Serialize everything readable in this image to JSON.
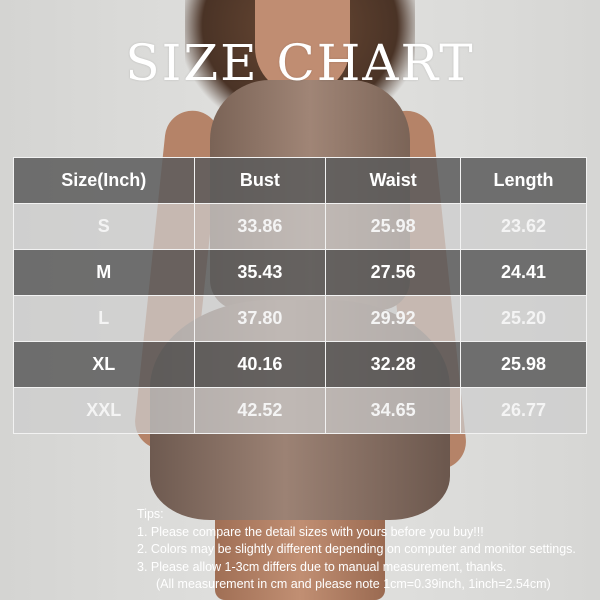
{
  "title": "SIZE CHART",
  "table": {
    "headers": [
      "Size(Inch)",
      "Bust",
      "Waist",
      "Length"
    ],
    "rows": [
      [
        "S",
        "33.86",
        "25.98",
        "23.62"
      ],
      [
        "M",
        "35.43",
        "27.56",
        "24.41"
      ],
      [
        "L",
        "37.80",
        "29.92",
        "25.20"
      ],
      [
        "XL",
        "40.16",
        "32.28",
        "25.98"
      ],
      [
        "XXL",
        "42.52",
        "34.65",
        "26.77"
      ]
    ]
  },
  "tips": {
    "heading": "Tips:",
    "lines": [
      "1. Please compare the detail sizes with yours before you buy!!!",
      "2. Colors may be slightly different depending on computer and monitor settings.",
      "3. Please allow 1-3cm differs due to manual measurement, thanks.",
      "(All measurement in cm and please note 1cm=0.39inch, 1inch=2.54cm)"
    ]
  }
}
